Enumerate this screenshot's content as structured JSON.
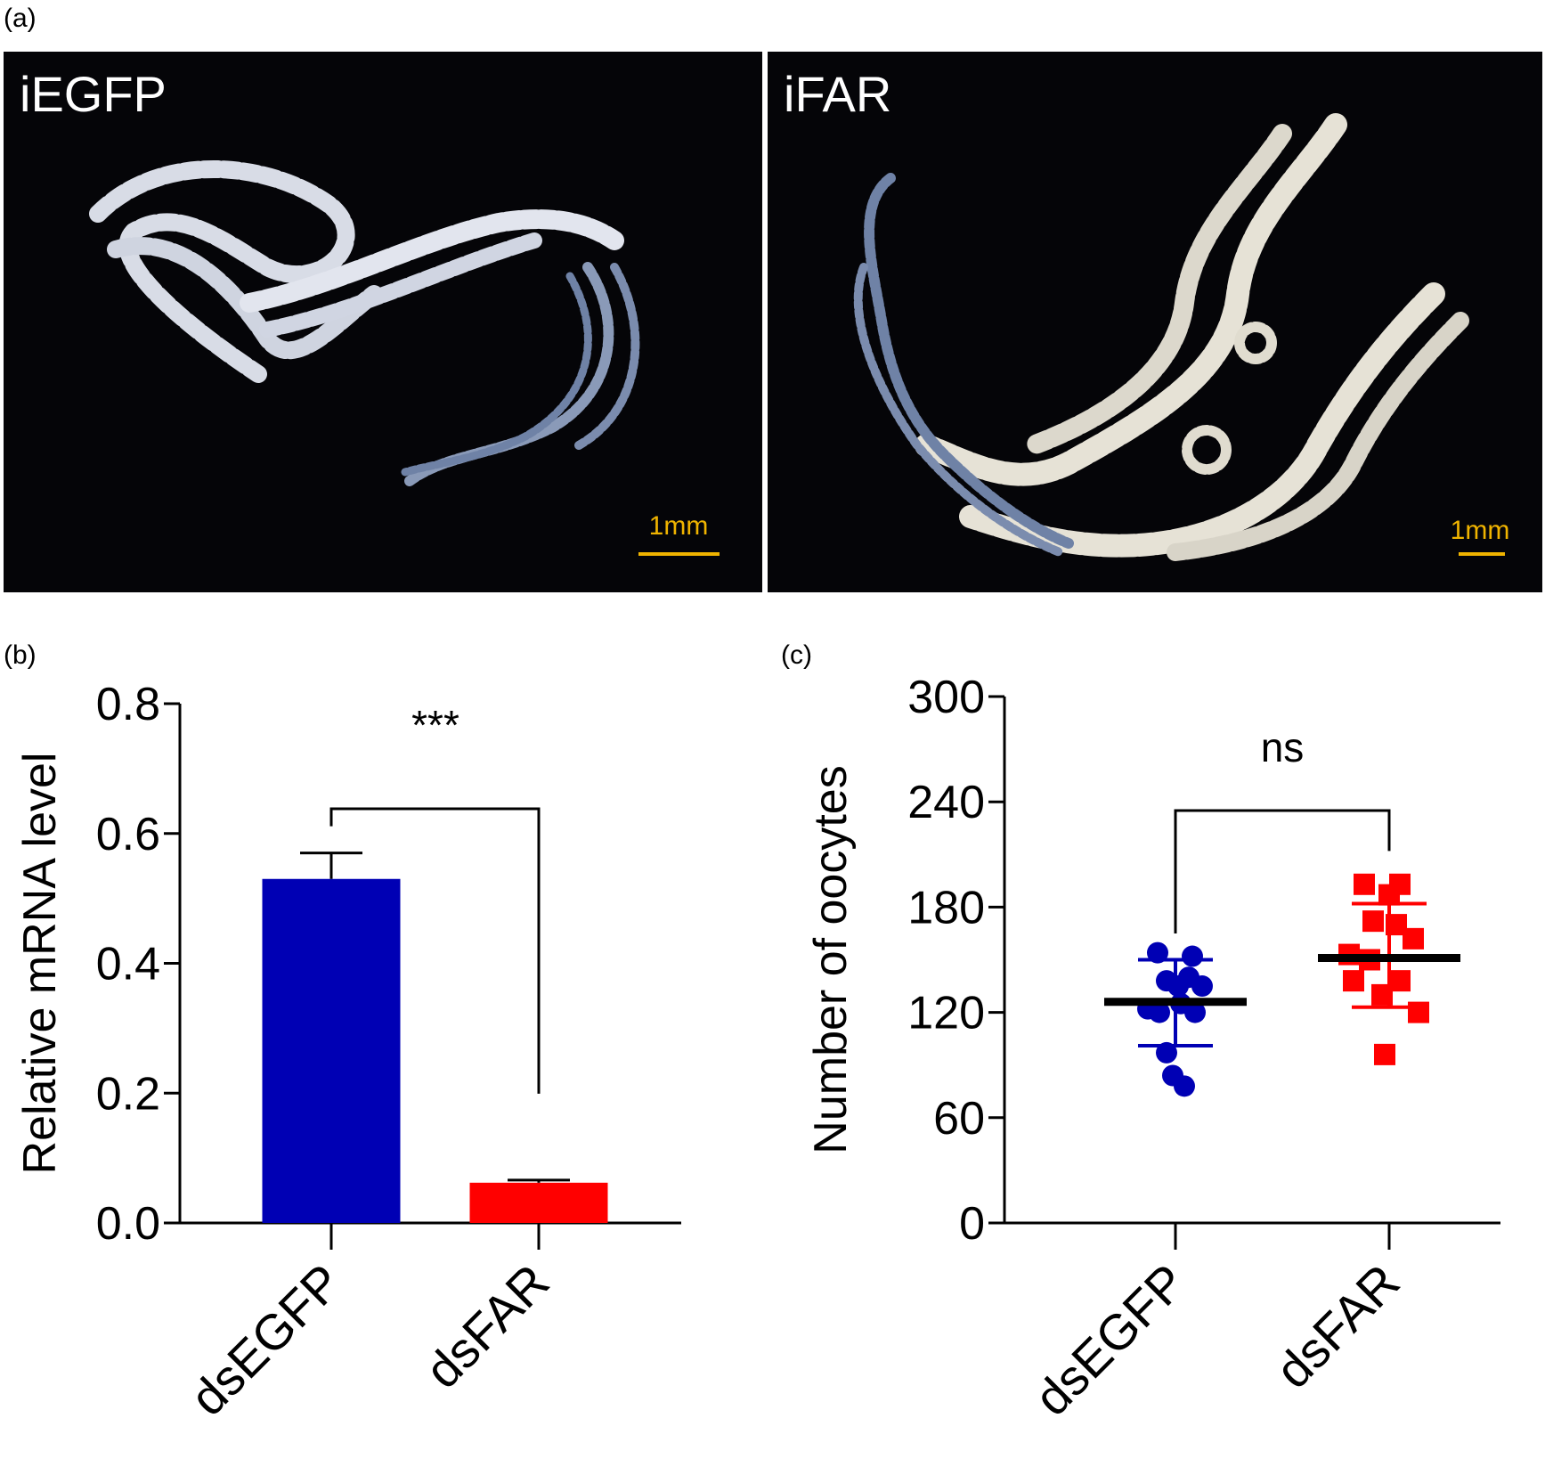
{
  "panel_labels": {
    "a": "(a)",
    "b": "(b)",
    "c": "(c)"
  },
  "photos": {
    "left": {
      "title": "iEGFP",
      "scale": "1mm"
    },
    "right": {
      "title": "iFAR",
      "scale": "1mm"
    }
  },
  "colors": {
    "dsEGFP": "#0000b4",
    "dsFAR": "#ff0000",
    "axis": "#000000"
  },
  "chart_data": [
    {
      "id": "b",
      "type": "bar",
      "categories": [
        "dsEGFP",
        "dsFAR"
      ],
      "values": [
        0.53,
        0.062
      ],
      "errors": [
        0.04,
        0.004
      ],
      "ylabel": "Relative mRNA level",
      "ylim": [
        0,
        0.8
      ],
      "yticks": [
        0.0,
        0.2,
        0.4,
        0.6,
        0.8
      ],
      "ytick_labels": [
        "0.0",
        "0.2",
        "0.4",
        "0.6",
        "0.8"
      ],
      "significance": "***"
    },
    {
      "id": "c",
      "type": "scatter",
      "categories": [
        "dsEGFP",
        "dsFAR"
      ],
      "ylabel": "Number of oocytes",
      "ylim": [
        0,
        300
      ],
      "yticks": [
        0,
        60,
        120,
        180,
        240,
        300
      ],
      "ytick_labels": [
        "0",
        "60",
        "120",
        "180",
        "240",
        "300"
      ],
      "significance": "ns",
      "series": [
        {
          "category": "dsEGFP",
          "marker": "circle",
          "points": [
            {
              "dx": -0.2,
              "y": 154
            },
            {
              "dx": 0.19,
              "y": 152
            },
            {
              "dx": 0.15,
              "y": 140
            },
            {
              "dx": -0.1,
              "y": 138
            },
            {
              "dx": 0.03,
              "y": 135
            },
            {
              "dx": 0.3,
              "y": 135
            },
            {
              "dx": 0.06,
              "y": 125
            },
            {
              "dx": -0.31,
              "y": 122
            },
            {
              "dx": -0.18,
              "y": 120
            },
            {
              "dx": 0.22,
              "y": 120
            },
            {
              "dx": -0.1,
              "y": 97
            },
            {
              "dx": -0.03,
              "y": 84
            },
            {
              "dx": 0.1,
              "y": 78
            }
          ],
          "mean": 126,
          "sd_upper": 150,
          "sd_lower": 101
        },
        {
          "category": "dsFAR",
          "marker": "square",
          "points": [
            {
              "dx": -0.28,
              "y": 193
            },
            {
              "dx": 0.12,
              "y": 193
            },
            {
              "dx": 0.0,
              "y": 187
            },
            {
              "dx": -0.18,
              "y": 172
            },
            {
              "dx": 0.08,
              "y": 170
            },
            {
              "dx": 0.27,
              "y": 162
            },
            {
              "dx": -0.45,
              "y": 153
            },
            {
              "dx": -0.22,
              "y": 150
            },
            {
              "dx": -0.4,
              "y": 138
            },
            {
              "dx": 0.12,
              "y": 138
            },
            {
              "dx": -0.08,
              "y": 130
            },
            {
              "dx": 0.33,
              "y": 120
            },
            {
              "dx": -0.05,
              "y": 96
            }
          ],
          "mean": 151,
          "sd_upper": 182,
          "sd_lower": 123
        }
      ]
    }
  ]
}
